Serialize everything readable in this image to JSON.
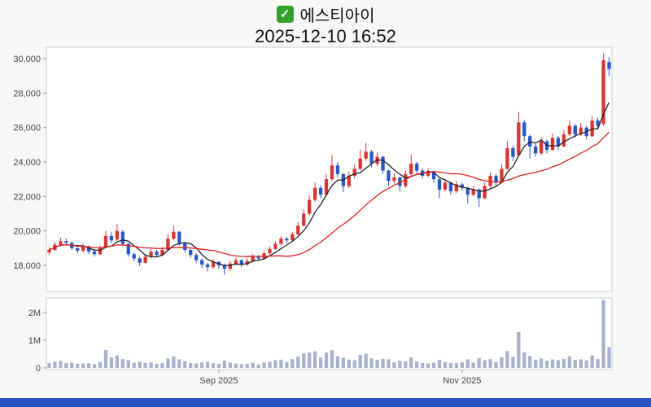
{
  "header": {
    "checkbox_icon": "green-checkbox-icon",
    "checkmark": "✓",
    "title": "에스티아이",
    "timestamp": "2025-12-10 16:52"
  },
  "colors": {
    "background": "#f7f7f6",
    "pane_background": "#ffffff",
    "pane_border": "#cccccc",
    "up": "#d93535",
    "down": "#2b57c8",
    "ma_fast": "#222222",
    "ma_slow": "#dd2222",
    "volume_bar": "#a9b1cd",
    "axis_text": "#444444",
    "bottom_bar": "#2b50c4",
    "checkbox_green": "#33a02c"
  },
  "chart_data": {
    "type": "candlestick_with_volume",
    "title": "에스티아이",
    "timestamp": "2025-12-10 16:52",
    "legend_position": "none",
    "grid": false,
    "price_axis": {
      "ticks": [
        {
          "value": 30000,
          "label": "30,000"
        },
        {
          "value": 28000,
          "label": "28,000"
        },
        {
          "value": 26000,
          "label": "26,000"
        },
        {
          "value": 24000,
          "label": "24,000"
        },
        {
          "value": 22000,
          "label": "22,000"
        },
        {
          "value": 20000,
          "label": "20,000"
        },
        {
          "value": 18000,
          "label": "18,000"
        }
      ]
    },
    "volume_axis": {
      "ticks": [
        {
          "value": 2000000,
          "label": "2M"
        },
        {
          "value": 1000000,
          "label": "1M"
        },
        {
          "value": 0,
          "label": "0"
        }
      ]
    },
    "x_axis": {
      "ticks": [
        {
          "index": 30,
          "label": "Sep 2025"
        },
        {
          "index": 73,
          "label": "Nov 2025"
        }
      ]
    },
    "overlays": [
      {
        "name": "MA5",
        "color_key": "ma_fast",
        "window": 5
      },
      {
        "name": "MA20",
        "color_key": "ma_slow",
        "window": 20
      }
    ],
    "volume_unit": 1000,
    "columns": [
      "open",
      "high",
      "low",
      "close",
      "volume"
    ],
    "candles": [
      [
        18750,
        19050,
        18600,
        18900,
        180
      ],
      [
        18900,
        19350,
        18850,
        19200,
        220
      ],
      [
        19200,
        19600,
        19100,
        19400,
        260
      ],
      [
        19400,
        19550,
        19150,
        19300,
        170
      ],
      [
        19300,
        19400,
        18900,
        19000,
        190
      ],
      [
        19000,
        19150,
        18700,
        18850,
        150
      ],
      [
        18850,
        19250,
        18750,
        19100,
        160
      ],
      [
        19100,
        19150,
        18650,
        18800,
        170
      ],
      [
        18800,
        18950,
        18500,
        18650,
        140
      ],
      [
        18650,
        19150,
        18600,
        19000,
        210
      ],
      [
        19050,
        20000,
        19000,
        19700,
        650
      ],
      [
        19700,
        19950,
        19300,
        19450,
        380
      ],
      [
        19500,
        20400,
        19400,
        20000,
        450
      ],
      [
        19950,
        20050,
        19100,
        19250,
        320
      ],
      [
        19250,
        19300,
        18500,
        18650,
        280
      ],
      [
        18650,
        18750,
        18250,
        18400,
        190
      ],
      [
        18400,
        18500,
        17950,
        18150,
        230
      ],
      [
        18150,
        18650,
        18100,
        18500,
        180
      ],
      [
        18500,
        18950,
        18400,
        18800,
        200
      ],
      [
        18800,
        18900,
        18450,
        18600,
        150
      ],
      [
        18600,
        19050,
        18550,
        18900,
        170
      ],
      [
        18900,
        19800,
        18850,
        19550,
        340
      ],
      [
        19550,
        20300,
        19450,
        19950,
        420
      ],
      [
        19950,
        20000,
        19150,
        19300,
        310
      ],
      [
        19300,
        19350,
        18750,
        18900,
        240
      ],
      [
        18900,
        18950,
        18450,
        18600,
        180
      ],
      [
        18600,
        18700,
        18150,
        18300,
        160
      ],
      [
        18300,
        18400,
        17850,
        18050,
        200
      ],
      [
        18050,
        18150,
        17650,
        17900,
        220
      ],
      [
        17900,
        18350,
        17800,
        18200,
        170
      ],
      [
        18200,
        18250,
        17800,
        18000,
        150
      ],
      [
        18000,
        18100,
        17450,
        17800,
        260
      ],
      [
        17800,
        18250,
        17700,
        18100,
        190
      ],
      [
        18100,
        18450,
        18000,
        18300,
        160
      ],
      [
        18300,
        18350,
        17900,
        18050,
        140
      ],
      [
        18050,
        18400,
        17950,
        18250,
        150
      ],
      [
        18250,
        18650,
        18200,
        18500,
        180
      ],
      [
        18500,
        18600,
        18250,
        18400,
        130
      ],
      [
        18400,
        18850,
        18350,
        18700,
        200
      ],
      [
        18700,
        19100,
        18650,
        18950,
        230
      ],
      [
        18950,
        19400,
        18900,
        19250,
        280
      ],
      [
        19250,
        19700,
        19150,
        19550,
        300
      ],
      [
        19550,
        19650,
        19300,
        19450,
        210
      ],
      [
        19450,
        19950,
        19400,
        19800,
        320
      ],
      [
        19800,
        20500,
        19750,
        20300,
        410
      ],
      [
        20300,
        21250,
        20250,
        21000,
        520
      ],
      [
        21000,
        22050,
        20900,
        21800,
        560
      ],
      [
        21800,
        22800,
        21700,
        22500,
        600
      ],
      [
        22500,
        22650,
        21900,
        22100,
        380
      ],
      [
        22100,
        23300,
        22050,
        23000,
        550
      ],
      [
        23000,
        24400,
        22900,
        23800,
        640
      ],
      [
        23800,
        24000,
        23100,
        23300,
        420
      ],
      [
        23300,
        23350,
        22250,
        22600,
        380
      ],
      [
        22600,
        23450,
        22500,
        23200,
        300
      ],
      [
        23200,
        23850,
        23050,
        23600,
        280
      ],
      [
        23600,
        24700,
        23500,
        24200,
        470
      ],
      [
        24200,
        25100,
        24050,
        24600,
        510
      ],
      [
        24600,
        24700,
        23700,
        23900,
        350
      ],
      [
        23900,
        24550,
        23750,
        24300,
        290
      ],
      [
        24300,
        24350,
        23300,
        23500,
        330
      ],
      [
        23500,
        23550,
        22600,
        22900,
        310
      ],
      [
        22900,
        23350,
        22750,
        23100,
        200
      ],
      [
        23100,
        23150,
        22300,
        22600,
        260
      ],
      [
        22600,
        23500,
        22500,
        23300,
        240
      ],
      [
        23300,
        24450,
        23200,
        23900,
        380
      ],
      [
        23900,
        24000,
        23300,
        23500,
        230
      ],
      [
        23500,
        23650,
        23050,
        23200,
        180
      ],
      [
        23200,
        23600,
        23100,
        23400,
        160
      ],
      [
        23400,
        23450,
        22800,
        23000,
        190
      ],
      [
        23000,
        23050,
        21900,
        22400,
        290
      ],
      [
        22400,
        23000,
        22300,
        22800,
        210
      ],
      [
        22800,
        22850,
        22100,
        22300,
        180
      ],
      [
        22300,
        22900,
        22200,
        22700,
        170
      ],
      [
        22700,
        22800,
        22350,
        22500,
        200
      ],
      [
        22500,
        22550,
        21600,
        22100,
        310
      ],
      [
        22100,
        22600,
        22000,
        22400,
        190
      ],
      [
        22400,
        22450,
        21400,
        21900,
        350
      ],
      [
        21900,
        22800,
        21850,
        22600,
        280
      ],
      [
        22600,
        23400,
        22500,
        23200,
        320
      ],
      [
        23200,
        23300,
        22600,
        22800,
        210
      ],
      [
        22800,
        23850,
        22750,
        23600,
        390
      ],
      [
        23600,
        25200,
        23550,
        24800,
        610
      ],
      [
        24800,
        24950,
        24050,
        24300,
        400
      ],
      [
        24400,
        26900,
        24300,
        26300,
        1300
      ],
      [
        26300,
        26450,
        25200,
        25500,
        560
      ],
      [
        25500,
        25600,
        24200,
        24900,
        430
      ],
      [
        24900,
        25050,
        24300,
        24500,
        300
      ],
      [
        24500,
        25450,
        24400,
        25200,
        340
      ],
      [
        25200,
        25300,
        24500,
        24700,
        260
      ],
      [
        24700,
        25650,
        24650,
        25400,
        310
      ],
      [
        25400,
        25500,
        24700,
        24900,
        280
      ],
      [
        24900,
        25850,
        24850,
        25600,
        330
      ],
      [
        25600,
        26400,
        25500,
        26100,
        420
      ],
      [
        26100,
        26200,
        25400,
        25600,
        290
      ],
      [
        25600,
        26250,
        25500,
        26000,
        310
      ],
      [
        26000,
        26100,
        25300,
        25500,
        270
      ],
      [
        25500,
        26650,
        25450,
        26400,
        450
      ],
      [
        26400,
        26550,
        25900,
        26100,
        320
      ],
      [
        26200,
        30300,
        26100,
        29900,
        2450
      ],
      [
        29800,
        30100,
        29000,
        29400,
        750
      ]
    ]
  }
}
